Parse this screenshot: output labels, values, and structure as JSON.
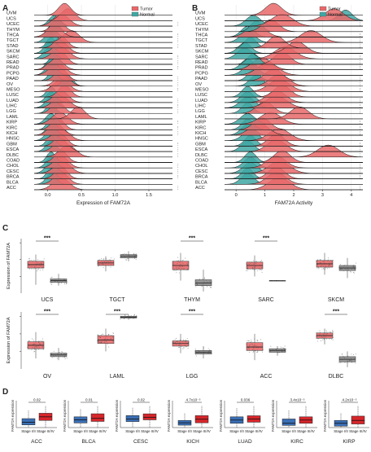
{
  "chart_data": [
    {
      "panel": "A",
      "type": "ridgeline",
      "xlabel": "Expression of FAM72A",
      "xticks": [
        0.0,
        0.5,
        1.0,
        1.5
      ],
      "xlim": [
        -0.2,
        1.85
      ],
      "legend": {
        "placement": "top-right",
        "entries": [
          {
            "name": "Tumor",
            "color": "#e8696a"
          },
          {
            "name": "Normal",
            "color": "#3fa7a3"
          }
        ]
      },
      "categories": [
        "UVM",
        "UCS",
        "UCEC",
        "THYM",
        "THCA",
        "TGCT",
        "STAD",
        "SKCM",
        "SARC",
        "READ",
        "PRAD",
        "PCPG",
        "PAAD",
        "OV",
        "MESO",
        "LUSC",
        "LUAD",
        "LIHC",
        "LGG",
        "LAML",
        "KIRP",
        "KIRC",
        "KICH",
        "HNSC",
        "GBM",
        "ESCA",
        "DLBC",
        "COAD",
        "CHOL",
        "CESC",
        "BRCA",
        "BLCA",
        "ACC"
      ],
      "series": [
        {
          "name": "Tumor",
          "peaks": [
            0.25,
            0.3,
            0.2,
            0.15,
            0.1,
            0.35,
            0.2,
            0.2,
            0.2,
            0.2,
            0.12,
            0.15,
            0.2,
            0.22,
            0.2,
            0.25,
            0.2,
            0.2,
            0.15,
            0.45,
            0.18,
            0.15,
            0.12,
            0.2,
            0.2,
            0.2,
            0.3,
            0.2,
            0.2,
            0.22,
            0.2,
            0.2,
            0.2
          ]
        },
        {
          "name": "Normal",
          "peaks": [
            null,
            null,
            0.1,
            0.1,
            0.05,
            0.05,
            0.05,
            0.02,
            0.02,
            0.1,
            0.05,
            0.05,
            0.08,
            0.3,
            null,
            0.05,
            0.05,
            0.05,
            0.05,
            null,
            0.05,
            0.05,
            0.05,
            0.05,
            0.05,
            0.05,
            null,
            0.05,
            0.05,
            0.05,
            0.05,
            0.05,
            null
          ]
        }
      ]
    },
    {
      "panel": "B",
      "type": "ridgeline",
      "xlabel": "FAM72A Activity",
      "xticks": [
        0,
        1,
        2,
        3,
        4
      ],
      "xlim": [
        -0.4,
        4.4
      ],
      "legend": {
        "placement": "top-right",
        "entries": [
          {
            "name": "Tumor",
            "color": "#e8696a"
          },
          {
            "name": "Normal",
            "color": "#3fa7a3"
          }
        ]
      },
      "categories": [
        "UVM",
        "UCS",
        "UCEC",
        "THYM",
        "THCA",
        "TGCT",
        "STAD",
        "SKCM",
        "SARC",
        "READ",
        "PRAD",
        "PCPG",
        "PAAD",
        "OV",
        "MESO",
        "LUSC",
        "LUAD",
        "LIHC",
        "LGG",
        "LAML",
        "KIRP",
        "KIRC",
        "KICH",
        "HNSC",
        "GBM",
        "ESCA",
        "DLBC",
        "COAD",
        "CHOL",
        "CESC",
        "BRCA",
        "BLCA",
        "ACC"
      ],
      "series": [
        {
          "name": "Tumor",
          "peaks": [
            1.3,
            3.4,
            1.6,
            1.2,
            0.7,
            2.6,
            1.4,
            2.1,
            1.7,
            1.6,
            0.9,
            1.1,
            1.3,
            1.5,
            1.5,
            1.6,
            1.4,
            1.4,
            1.0,
            2.2,
            1.2,
            0.9,
            0.8,
            1.5,
            1.4,
            1.4,
            3.2,
            1.6,
            1.4,
            1.5,
            1.4,
            1.4,
            1.5
          ]
        },
        {
          "name": "Normal",
          "peaks": [
            null,
            3.8,
            0.6,
            0.7,
            0.4,
            0.4,
            0.5,
            0.3,
            0.3,
            0.6,
            0.4,
            0.5,
            0.6,
            0.7,
            null,
            0.4,
            0.4,
            0.4,
            0.4,
            null,
            0.4,
            0.4,
            0.4,
            0.5,
            0.5,
            0.4,
            null,
            0.5,
            0.5,
            0.5,
            0.4,
            0.4,
            null
          ]
        }
      ]
    },
    {
      "panel": "C",
      "type": "box",
      "ylabel": "Expression of FAM72A",
      "groups": [
        "Tumor",
        "Normal"
      ],
      "colors": [
        "#e8696a",
        "#8c8c8c"
      ],
      "categories": [
        "UCS",
        "TGCT",
        "THYM",
        "SARC",
        "SKCM",
        "OV",
        "LAML",
        "LGG",
        "ACC",
        "DLBC"
      ],
      "significance": [
        "***",
        "",
        "***",
        "***",
        "",
        "***",
        "***",
        "***",
        "",
        "***"
      ],
      "tumor": [
        {
          "min": 1.0,
          "q1": 3.0,
          "median": 3.4,
          "q3": 3.8,
          "max": 4.6
        },
        {
          "min": 2.6,
          "q1": 3.3,
          "median": 3.6,
          "q3": 3.9,
          "max": 4.4
        },
        {
          "min": 1.5,
          "q1": 2.8,
          "median": 3.3,
          "q3": 3.8,
          "max": 4.8
        },
        {
          "min": 2.0,
          "q1": 2.9,
          "median": 3.3,
          "q3": 3.7,
          "max": 4.5
        },
        {
          "min": 2.2,
          "q1": 3.1,
          "median": 3.5,
          "q3": 3.9,
          "max": 4.8
        },
        {
          "min": 1.2,
          "q1": 2.3,
          "median": 2.7,
          "q3": 3.1,
          "max": 4.2
        },
        {
          "min": 2.0,
          "q1": 2.9,
          "median": 3.3,
          "q3": 3.8,
          "max": 4.6
        },
        {
          "min": 1.8,
          "q1": 2.6,
          "median": 2.9,
          "q3": 3.2,
          "max": 4.0
        },
        {
          "min": 1.0,
          "q1": 2.1,
          "median": 2.5,
          "q3": 3.0,
          "max": 4.0
        },
        {
          "min": 2.8,
          "q1": 3.5,
          "median": 3.8,
          "q3": 4.1,
          "max": 4.6
        }
      ],
      "normal": [
        {
          "min": 0.9,
          "q1": 1.3,
          "median": 1.5,
          "q3": 1.7,
          "max": 2.3
        },
        {
          "min": 3.8,
          "q1": 4.2,
          "median": 4.4,
          "q3": 4.6,
          "max": 5.0
        },
        {
          "min": 0.2,
          "q1": 0.9,
          "median": 1.2,
          "q3": 1.6,
          "max": 2.8
        },
        {
          "min": 1.5,
          "q1": 1.5,
          "median": 1.5,
          "q3": 1.5,
          "max": 1.5
        },
        {
          "min": 1.8,
          "q1": 2.7,
          "median": 3.0,
          "q3": 3.3,
          "max": 4.2
        },
        {
          "min": 1.0,
          "q1": 1.4,
          "median": 1.6,
          "q3": 1.8,
          "max": 2.4
        },
        {
          "min": 5.6,
          "q1": 5.8,
          "median": 5.9,
          "q3": 6.0,
          "max": 6.2
        },
        {
          "min": 1.2,
          "q1": 1.7,
          "median": 1.9,
          "q3": 2.1,
          "max": 2.6
        },
        {
          "min": 1.5,
          "q1": 1.9,
          "median": 2.1,
          "q3": 2.3,
          "max": 2.6
        },
        {
          "min": 0.2,
          "q1": 0.8,
          "median": 1.1,
          "q3": 1.4,
          "max": 2.0
        }
      ]
    },
    {
      "panel": "D",
      "type": "box",
      "ylabels": [
        "FAM72A expression",
        "FAM72A expression",
        "FAM72A expression",
        "FAM72A expression",
        "FAM72A expression",
        "FAM72A expression",
        "FAM72A expression"
      ],
      "stage_labels": [
        "Stage I/II",
        "Stage III/IV"
      ],
      "colors": [
        "#3a6fb5",
        "#d7262b"
      ],
      "categories": [
        "ACC",
        "BLCA",
        "CESC",
        "KICH",
        "LUAD",
        "KIRC",
        "KIRP"
      ],
      "pvalues": [
        "0.02",
        "0.01",
        "0.02",
        "4.7x10⁻⁵",
        "0.036",
        "3.4x10⁻⁵",
        "4.2x10⁻⁵"
      ],
      "stage_early": [
        {
          "min": 0.0,
          "q1": 0.3,
          "median": 0.6,
          "q3": 1.0,
          "max": 1.9
        },
        {
          "min": 0.0,
          "q1": 0.3,
          "median": 0.5,
          "q3": 0.7,
          "max": 1.2
        },
        {
          "min": 0.0,
          "q1": 0.7,
          "median": 1.0,
          "q3": 1.4,
          "max": 2.3
        },
        {
          "min": 0.0,
          "q1": 0.1,
          "median": 0.2,
          "q3": 0.3,
          "max": 0.6
        },
        {
          "min": 0.0,
          "q1": 0.4,
          "median": 0.7,
          "q3": 1.0,
          "max": 1.8
        },
        {
          "min": 0.0,
          "q1": 0.1,
          "median": 0.2,
          "q3": 0.4,
          "max": 0.8
        },
        {
          "min": 0.0,
          "q1": 0.1,
          "median": 0.3,
          "q3": 0.5,
          "max": 1.0
        }
      ],
      "stage_late": [
        {
          "min": 0.0,
          "q1": 0.8,
          "median": 1.2,
          "q3": 1.6,
          "max": 2.4
        },
        {
          "min": 0.0,
          "q1": 0.4,
          "median": 0.6,
          "q3": 0.9,
          "max": 1.4
        },
        {
          "min": 0.0,
          "q1": 0.9,
          "median": 1.2,
          "q3": 1.6,
          "max": 2.5
        },
        {
          "min": 0.0,
          "q1": 0.2,
          "median": 0.35,
          "q3": 0.5,
          "max": 0.9
        },
        {
          "min": 0.0,
          "q1": 0.5,
          "median": 0.8,
          "q3": 1.1,
          "max": 2.0
        },
        {
          "min": 0.0,
          "q1": 0.2,
          "median": 0.35,
          "q3": 0.5,
          "max": 1.0
        },
        {
          "min": 0.0,
          "q1": 0.25,
          "median": 0.5,
          "q3": 0.8,
          "max": 1.5
        }
      ]
    }
  ]
}
